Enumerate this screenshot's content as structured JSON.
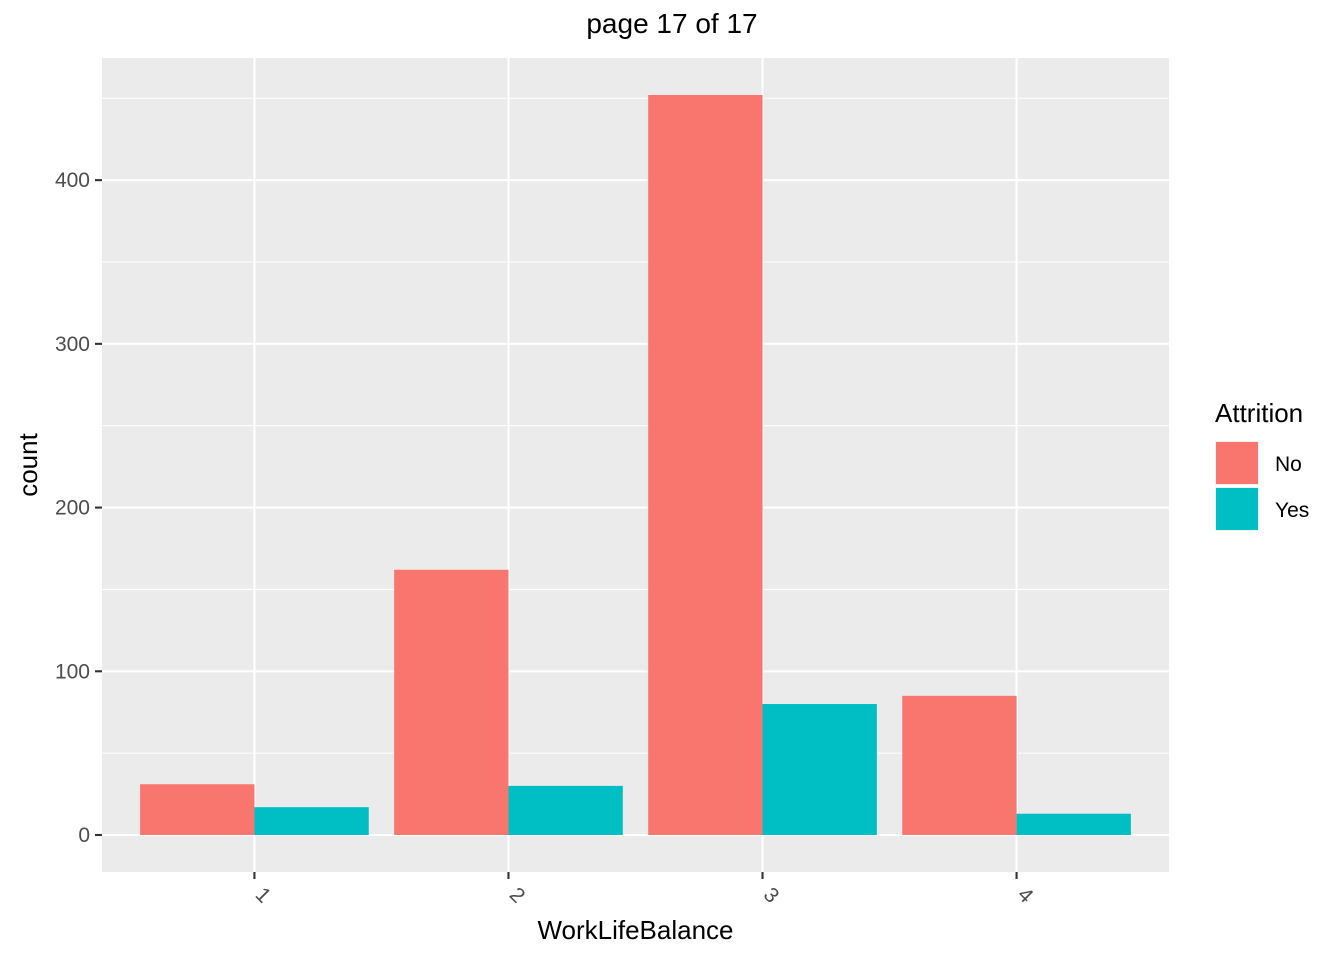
{
  "chart_data": {
    "type": "bar",
    "title": "page 17 of 17",
    "xlabel": "WorkLifeBalance",
    "ylabel": "count",
    "categories": [
      "1",
      "2",
      "3",
      "4"
    ],
    "series": [
      {
        "name": "No",
        "color": "#F8766D",
        "values": [
          31,
          162,
          452,
          85
        ]
      },
      {
        "name": "Yes",
        "color": "#00BFC4",
        "values": [
          17,
          30,
          80,
          13
        ]
      }
    ],
    "ylim": [
      -22.6,
      474.6
    ],
    "yticks": [
      0,
      100,
      200,
      300,
      400
    ],
    "grid": true,
    "legend": {
      "title": "Attrition",
      "placement": "right",
      "entries": [
        "No",
        "Yes"
      ]
    },
    "x_tick_rotation": "45 degrees",
    "panel_background": "#EBEBEB"
  }
}
